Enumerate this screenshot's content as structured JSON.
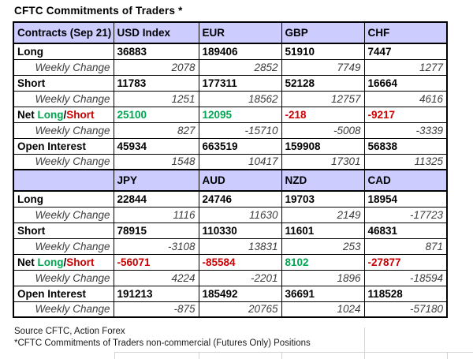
{
  "title": "CFTC Commitments of Traders *",
  "colors": {
    "header_bg": "#ccccff",
    "green": "#00a651",
    "red": "#cc0000"
  },
  "table": {
    "sections": [
      {
        "headers": [
          "Contracts (Sep 21)",
          "USD Index",
          "EUR",
          "GBP",
          "CHF"
        ],
        "rows": [
          {
            "type": "main",
            "label": "Long",
            "values": [
              "36883",
              "189406",
              "51910",
              "7447"
            ]
          },
          {
            "type": "change",
            "label": "Weekly Change",
            "values": [
              "2078",
              "2852",
              "7749",
              "1277"
            ]
          },
          {
            "type": "main",
            "label": "Short",
            "values": [
              "11783",
              "177311",
              "52128",
              "16664"
            ]
          },
          {
            "type": "change",
            "label": "Weekly Change",
            "values": [
              "1251",
              "18562",
              "12757",
              "4616"
            ]
          },
          {
            "type": "net",
            "label_parts": [
              {
                "text": "Net ",
                "color": "default"
              },
              {
                "text": "Long",
                "color": "green"
              },
              {
                "text": "/",
                "color": "default"
              },
              {
                "text": "Short",
                "color": "red"
              }
            ],
            "values": [
              "25100",
              "12095",
              "-218",
              "-9217"
            ],
            "value_colors": [
              "green",
              "green",
              "red",
              "red"
            ]
          },
          {
            "type": "change",
            "label": "Weekly Change",
            "values": [
              "827",
              "-15710",
              "-5008",
              "-3339"
            ]
          },
          {
            "type": "main",
            "label": "Open Interest",
            "values": [
              "45934",
              "663519",
              "159908",
              "56838"
            ]
          },
          {
            "type": "change",
            "label": "Weekly Change",
            "values": [
              "1548",
              "10417",
              "17301",
              "11325"
            ]
          }
        ]
      },
      {
        "headers": [
          "",
          "JPY",
          "AUD",
          "NZD",
          "CAD"
        ],
        "rows": [
          {
            "type": "main",
            "label": "Long",
            "values": [
              "22844",
              "24746",
              "19703",
              "18954"
            ]
          },
          {
            "type": "change",
            "label": "Weekly Change",
            "values": [
              "1116",
              "11630",
              "2149",
              "-17723"
            ]
          },
          {
            "type": "main",
            "label": "Short",
            "values": [
              "78915",
              "110330",
              "11601",
              "46831"
            ]
          },
          {
            "type": "change",
            "label": "Weekly Change",
            "values": [
              "-3108",
              "13831",
              "253",
              "871"
            ]
          },
          {
            "type": "net",
            "label_parts": [
              {
                "text": "Net ",
                "color": "default"
              },
              {
                "text": "Long",
                "color": "green"
              },
              {
                "text": "/",
                "color": "default"
              },
              {
                "text": "Short",
                "color": "red"
              }
            ],
            "values": [
              "-56071",
              "-85584",
              "8102",
              "-27877"
            ],
            "value_colors": [
              "red",
              "red",
              "green",
              "red"
            ]
          },
          {
            "type": "change",
            "label": "Weekly Change",
            "values": [
              "4224",
              "-2201",
              "1896",
              "-18594"
            ]
          },
          {
            "type": "main",
            "label": "Open Interest",
            "values": [
              "191213",
              "185492",
              "36691",
              "118528"
            ]
          },
          {
            "type": "change",
            "label": "Weekly Change",
            "values": [
              "-875",
              "20765",
              "1024",
              "-57180"
            ]
          }
        ]
      }
    ]
  },
  "footer": {
    "source": "Source CFTC, Action Forex",
    "note": "*CFTC Commitments of Traders non-commercial (Futures Only) Positions"
  },
  "chart_data": {
    "type": "table",
    "title": "CFTC Commitments of Traders * (Sep 21)",
    "row_labels": [
      "Long",
      "Long Weekly Change",
      "Short",
      "Short Weekly Change",
      "Net Long/Short",
      "Net Weekly Change",
      "Open Interest",
      "Open Interest Weekly Change"
    ],
    "series": [
      {
        "name": "USD Index",
        "long": 36883,
        "long_change": 2078,
        "short": 11783,
        "short_change": 1251,
        "net": 25100,
        "net_change": 827,
        "open_interest": 45934,
        "open_interest_change": 1548
      },
      {
        "name": "EUR",
        "long": 189406,
        "long_change": 2852,
        "short": 177311,
        "short_change": 18562,
        "net": 12095,
        "net_change": -15710,
        "open_interest": 663519,
        "open_interest_change": 10417
      },
      {
        "name": "GBP",
        "long": 51910,
        "long_change": 7749,
        "short": 52128,
        "short_change": 12757,
        "net": -218,
        "net_change": -5008,
        "open_interest": 159908,
        "open_interest_change": 17301
      },
      {
        "name": "CHF",
        "long": 7447,
        "long_change": 1277,
        "short": 16664,
        "short_change": 4616,
        "net": -9217,
        "net_change": -3339,
        "open_interest": 56838,
        "open_interest_change": 11325
      },
      {
        "name": "JPY",
        "long": 22844,
        "long_change": 1116,
        "short": 78915,
        "short_change": -3108,
        "net": -56071,
        "net_change": 4224,
        "open_interest": 191213,
        "open_interest_change": -875
      },
      {
        "name": "AUD",
        "long": 24746,
        "long_change": 11630,
        "short": 110330,
        "short_change": 13831,
        "net": -85584,
        "net_change": -2201,
        "open_interest": 185492,
        "open_interest_change": 20765
      },
      {
        "name": "NZD",
        "long": 19703,
        "long_change": 2149,
        "short": 11601,
        "short_change": 253,
        "net": 8102,
        "net_change": 1896,
        "open_interest": 36691,
        "open_interest_change": 1024
      },
      {
        "name": "CAD",
        "long": 18954,
        "long_change": -17723,
        "short": 46831,
        "short_change": 871,
        "net": -27877,
        "net_change": -18594,
        "open_interest": 118528,
        "open_interest_change": -57180
      }
    ],
    "legend_note": "green = net long, red = net short"
  }
}
